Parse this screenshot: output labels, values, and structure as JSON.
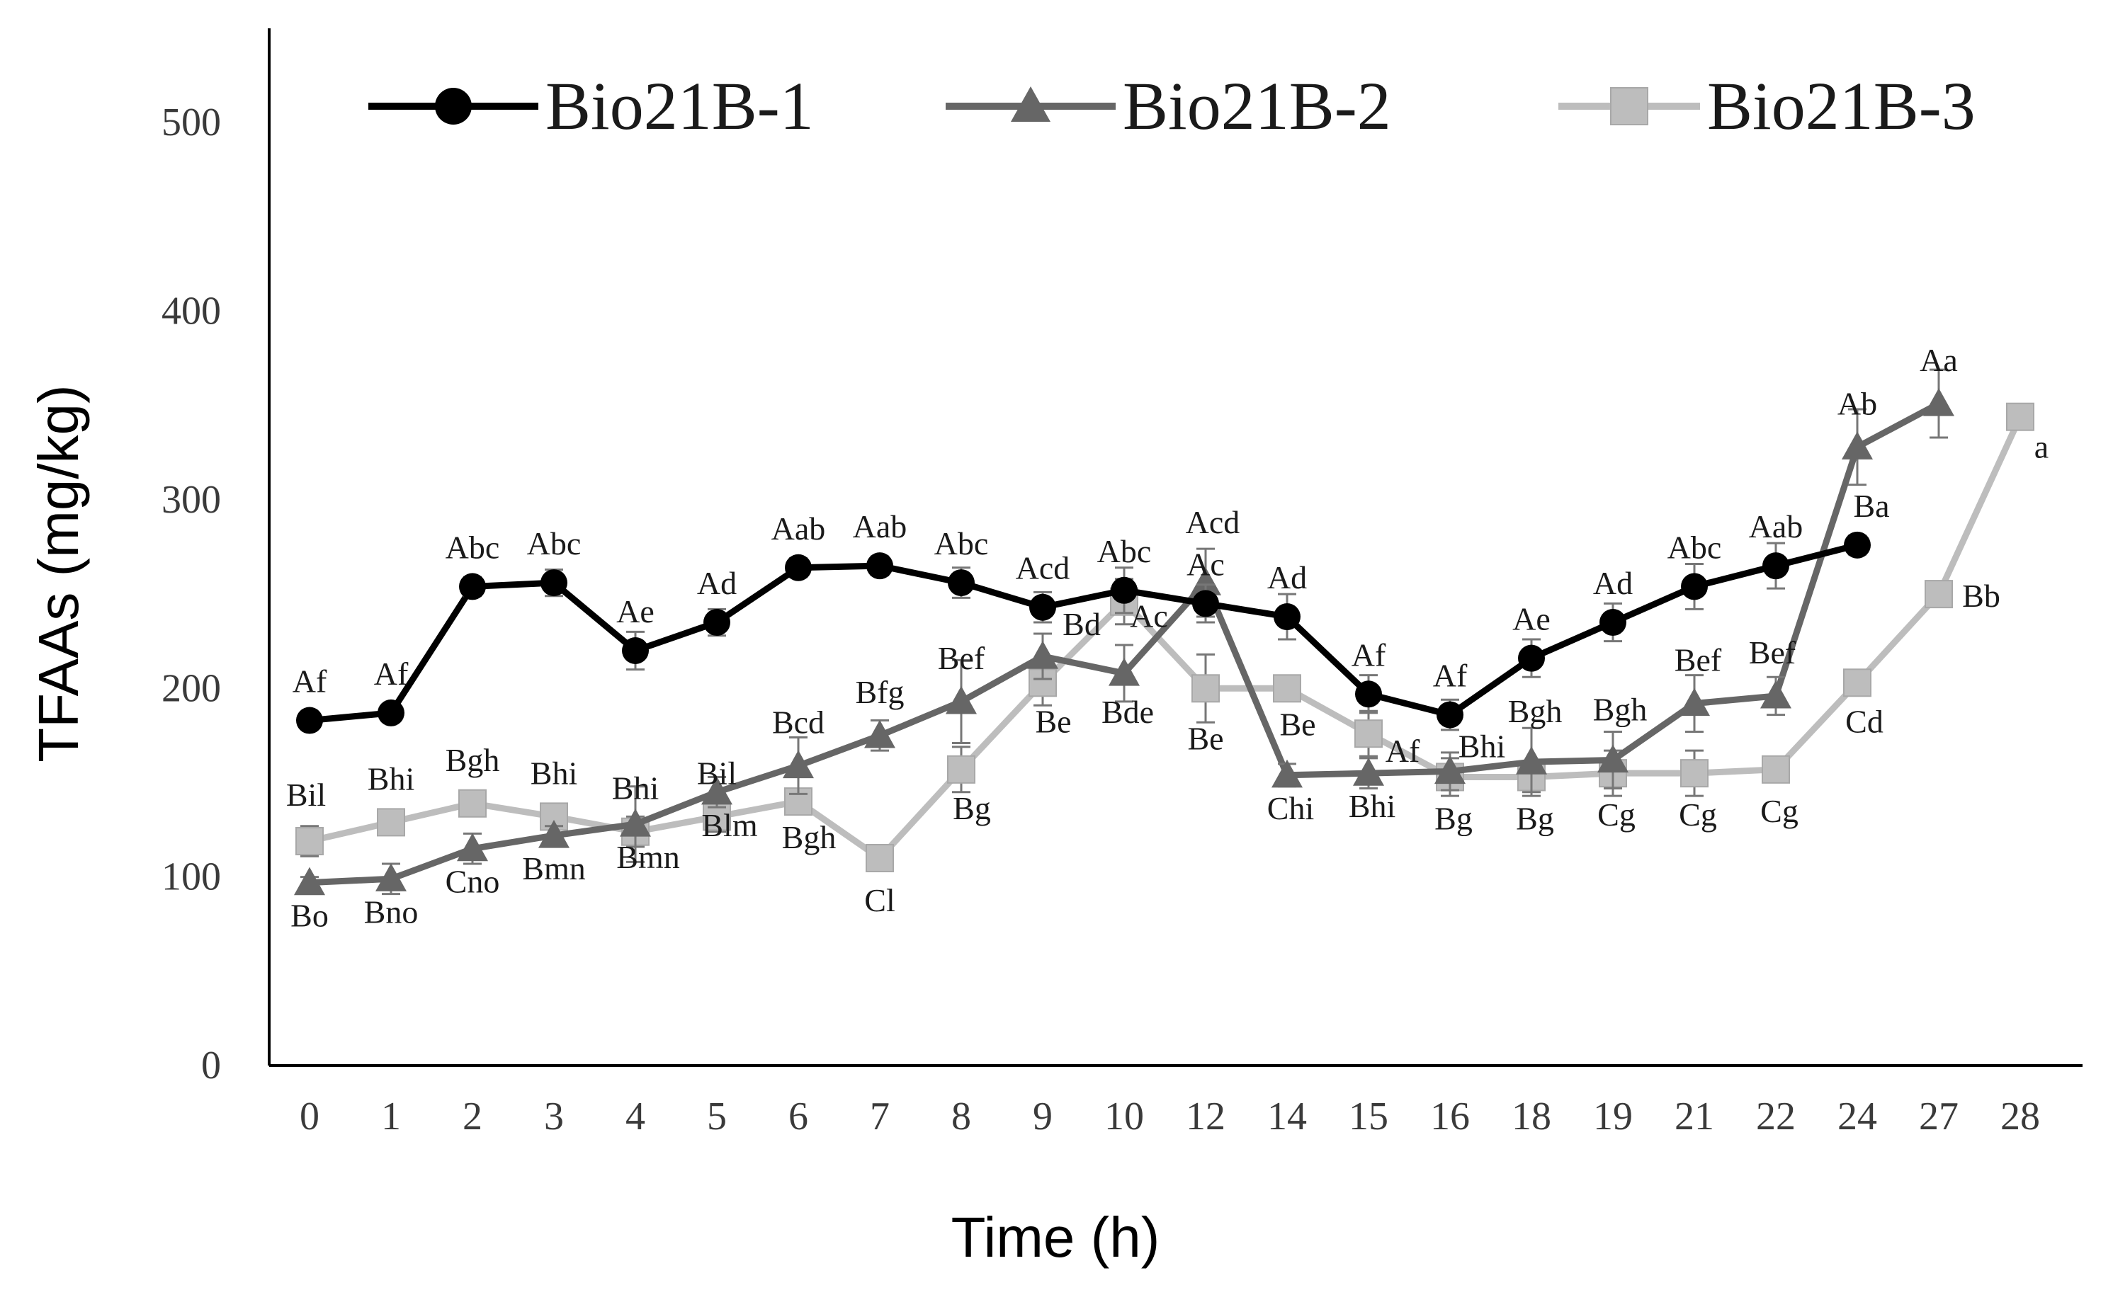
{
  "chart_data": {
    "type": "line",
    "title": "",
    "xlabel": "Time (h)",
    "ylabel": "TFAAs (mg/kg)",
    "ylim": [
      0,
      550
    ],
    "yticks": [
      "0",
      "100",
      "200",
      "300",
      "400",
      "500"
    ],
    "categories": [
      "0",
      "1",
      "2",
      "3",
      "4",
      "5",
      "6",
      "7",
      "8",
      "9",
      "10",
      "12",
      "14",
      "15",
      "16",
      "18",
      "19",
      "21",
      "22",
      "24",
      "27",
      "28"
    ],
    "legend_position": "top",
    "series": [
      {
        "name": "Bio21B-1",
        "color": "#000000",
        "marker": "circle",
        "values": [
          183,
          187,
          254,
          256,
          220,
          235,
          264,
          265,
          256,
          243,
          252,
          245,
          238,
          197,
          186,
          216,
          235,
          254,
          265,
          276,
          null,
          null
        ],
        "errors": [
          0,
          0,
          5,
          7,
          10,
          7,
          5,
          5,
          8,
          8,
          12,
          10,
          12,
          10,
          8,
          10,
          10,
          12,
          12,
          5,
          0,
          0
        ],
        "labels": [
          "Af",
          "Af",
          "Abc",
          "Abc",
          "Ae",
          "Ad",
          "Aab",
          "Aab",
          "Abc",
          "Acd",
          "Abc",
          "Ac",
          "Ad",
          "Af",
          "Af",
          "Ae",
          "Ad",
          "Abc",
          "Aab",
          "Ba",
          "",
          ""
        ]
      },
      {
        "name": "Bio21B-2",
        "color": "#666666",
        "marker": "triangle",
        "values": [
          97,
          99,
          115,
          122,
          128,
          145,
          159,
          175,
          193,
          217,
          208,
          256,
          154,
          155,
          156,
          161,
          162,
          192,
          196,
          328,
          351,
          null
        ],
        "errors": [
          3,
          8,
          8,
          5,
          20,
          8,
          15,
          8,
          22,
          12,
          15,
          18,
          6,
          8,
          10,
          18,
          15,
          15,
          10,
          20,
          18,
          0
        ],
        "labels": [
          "Bo",
          "Bno",
          "Cno",
          "Bmn",
          "Bmn",
          "Blm",
          "Bcd",
          "Bfg",
          "Bef",
          "Bd",
          "Bde",
          "Acd",
          "Chi",
          "Bhi",
          "Bhi",
          "Bgh",
          "Bgh",
          "Bef",
          "Bef",
          "Ab",
          "Aa",
          ""
        ]
      },
      {
        "name": "Bio21B-3",
        "color": "#bdbdbd",
        "marker": "square",
        "values": [
          119,
          129,
          139,
          132,
          124,
          132,
          140,
          110,
          157,
          203,
          246,
          200,
          200,
          176,
          153,
          153,
          155,
          155,
          157,
          203,
          250,
          344
        ],
        "errors": [
          8,
          5,
          5,
          5,
          8,
          8,
          5,
          5,
          12,
          12,
          12,
          18,
          5,
          12,
          10,
          8,
          12,
          12,
          5,
          5,
          5,
          5
        ],
        "labels": [
          "Bil",
          "Bhi",
          "Bgh",
          "Bhi",
          "Bhi",
          "Bil",
          "Bgh",
          "Cl",
          "Bg",
          "Be",
          "Ac",
          "Be",
          "Be",
          "Af",
          "Bg",
          "Bg",
          "Cg",
          "Cg",
          "Cg",
          "Cd",
          "Bb",
          "a"
        ]
      }
    ]
  }
}
